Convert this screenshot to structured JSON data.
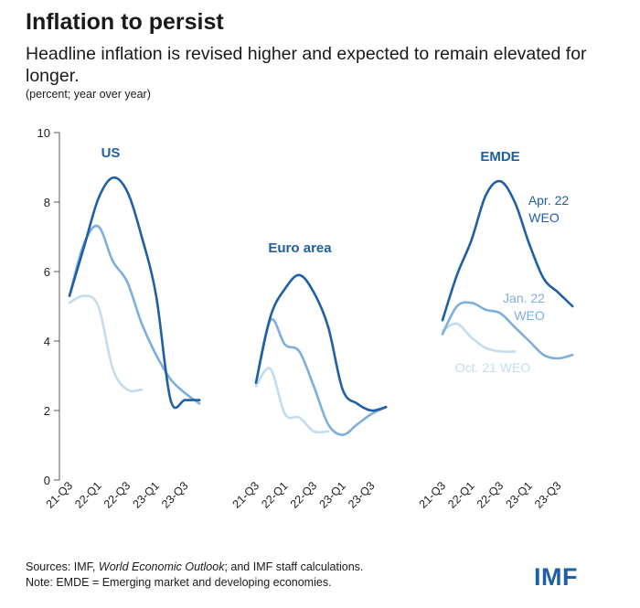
{
  "title": "Inflation to persist",
  "subtitle": "Headline inflation is revised higher and expected to remain elevated for longer.",
  "units": "(percent; year over year)",
  "footer": {
    "sources_prefix": "Sources: IMF, ",
    "sources_italic": "World Economic Outlook",
    "sources_suffix": "; and IMF staff calculations.",
    "note": "Note: EMDE = Emerging market and developing economies."
  },
  "logo": "IMF",
  "colors": {
    "apr22": "#1f5fa5",
    "jan22": "#7eaedc",
    "oct21": "#c2dcf0",
    "axis": "#555555"
  },
  "chart_data": {
    "type": "line",
    "ylim": [
      0,
      10
    ],
    "y_ticks": [
      0,
      2,
      4,
      6,
      8,
      10
    ],
    "grid": false,
    "x_labels": [
      "21-Q3",
      "22-Q1",
      "22-Q3",
      "23-Q1",
      "23-Q3"
    ],
    "panels": [
      {
        "name": "US",
        "series": [
          {
            "key": "apr22",
            "values": [
              5.3,
              6.7,
              8.1,
              8.7,
              8.3,
              7.0,
              5.3,
              2.3,
              2.3,
              2.3
            ]
          },
          {
            "key": "jan22",
            "values": [
              5.3,
              6.8,
              7.3,
              6.3,
              5.7,
              4.5,
              3.6,
              2.9,
              2.5,
              2.2
            ]
          },
          {
            "key": "oct21",
            "values": [
              5.1,
              5.3,
              5.0,
              3.2,
              2.6,
              2.6
            ]
          }
        ]
      },
      {
        "name": "Euro area",
        "series": [
          {
            "key": "apr22",
            "values": [
              2.8,
              4.7,
              5.5,
              5.9,
              5.4,
              4.4,
              2.6,
              2.2,
              2.0,
              2.1
            ]
          },
          {
            "key": "jan22",
            "values": [
              2.8,
              4.6,
              3.9,
              3.7,
              2.7,
              1.6,
              1.3,
              1.6,
              1.9,
              2.1
            ]
          },
          {
            "key": "oct21",
            "values": [
              2.7,
              3.2,
              1.9,
              1.8,
              1.4,
              1.4
            ]
          }
        ]
      },
      {
        "name": "EMDE",
        "series": [
          {
            "key": "apr22",
            "values": [
              4.6,
              5.9,
              6.9,
              8.2,
              8.6,
              8.0,
              6.8,
              5.8,
              5.4,
              5.0
            ]
          },
          {
            "key": "jan22",
            "values": [
              4.2,
              5.0,
              5.1,
              4.9,
              4.8,
              4.4,
              4.0,
              3.6,
              3.5,
              3.6
            ]
          },
          {
            "key": "oct21",
            "values": [
              4.3,
              4.5,
              4.1,
              3.8,
              3.7,
              3.7
            ]
          }
        ]
      }
    ],
    "annotations": {
      "apr22": [
        "Apr. 22",
        "WEO"
      ],
      "jan22": [
        "Jan. 22",
        "WEO"
      ],
      "oct21": "Oct. 21 WEO"
    }
  }
}
